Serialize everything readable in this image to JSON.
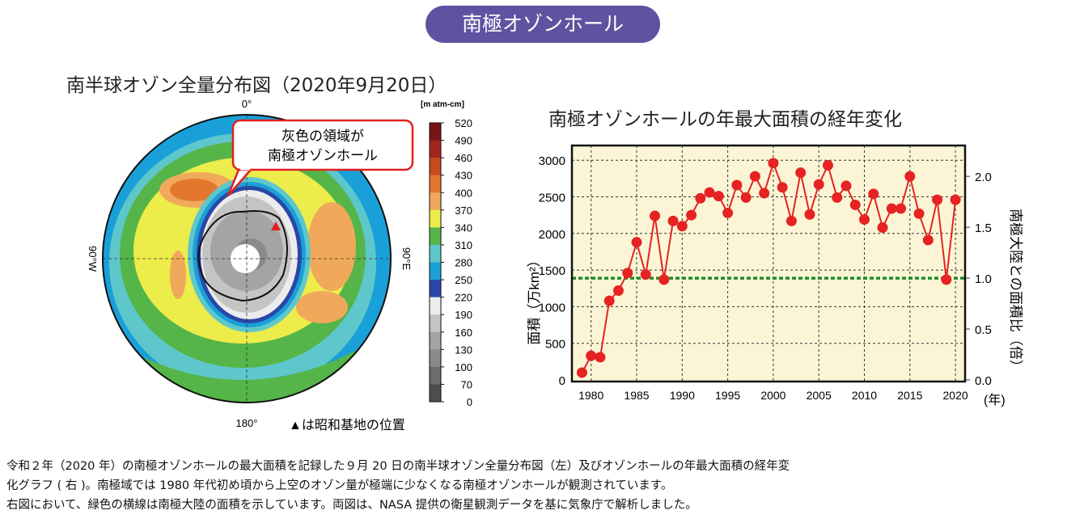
{
  "header": {
    "title": "南極オゾンホール"
  },
  "map": {
    "title": "南半球オゾン全量分布図（2020年9月20日）",
    "labels": {
      "top": "0°",
      "bottom": "180°",
      "left": "90°W",
      "right": "90°E"
    },
    "unit": "[m atm-cm]",
    "colorbar_ticks": [
      "520",
      "490",
      "460",
      "430",
      "400",
      "370",
      "340",
      "310",
      "280",
      "250",
      "220",
      "190",
      "160",
      "130",
      "100",
      "70",
      "0"
    ],
    "colorbar_colors": [
      "#7a1416",
      "#a3251f",
      "#c84a1e",
      "#e3782d",
      "#f0a95a",
      "#ecec4a",
      "#55b548",
      "#5ec7cc",
      "#1aa0d8",
      "#2a47a8",
      "#ececec",
      "#c4c4c4",
      "#a4a4a4",
      "#8a8a8a",
      "#6c6c6c",
      "#4e4e4e",
      "#2b2b2b"
    ],
    "callout": {
      "line1": "灰色の領域が",
      "line2": "南極オゾンホール"
    },
    "marker_note": "▲は昭和基地の位置",
    "marker_color": "#e02020"
  },
  "chart_data": {
    "type": "line",
    "title": "南極オゾンホールの年最大面積の経年変化",
    "ylabel": "面積（万km²）",
    "y2label": "南極大陸との面積比（倍）",
    "xlabel": "(年)",
    "x": [
      1979,
      1980,
      1981,
      1982,
      1983,
      1984,
      1985,
      1986,
      1987,
      1988,
      1989,
      1990,
      1991,
      1992,
      1993,
      1994,
      1995,
      1996,
      1997,
      1998,
      1999,
      2000,
      2001,
      2002,
      2003,
      2004,
      2005,
      2006,
      2007,
      2008,
      2009,
      2010,
      2011,
      2012,
      2013,
      2014,
      2015,
      2016,
      2017,
      2018,
      2019,
      2020
    ],
    "values": [
      100,
      330,
      310,
      1080,
      1220,
      1460,
      1880,
      1440,
      2240,
      1370,
      2170,
      2100,
      2250,
      2480,
      2560,
      2510,
      2280,
      2660,
      2490,
      2780,
      2550,
      2960,
      2630,
      2170,
      2830,
      2260,
      2670,
      2930,
      2490,
      2650,
      2390,
      2190,
      2540,
      2080,
      2340,
      2340,
      2780,
      2270,
      1910,
      2460,
      1370,
      2460
    ],
    "xlim": [
      1978.5,
      2021.5
    ],
    "ylim": [
      0,
      3200
    ],
    "xticks": [
      "1980",
      "1985",
      "1990",
      "1995",
      "2000",
      "2005",
      "2010",
      "2015",
      "2020"
    ],
    "yticks": [
      "0",
      "500",
      "1000",
      "1500",
      "2000",
      "2500",
      "3000"
    ],
    "y2ticks": [
      "0.0",
      "0.5",
      "1.0",
      "1.5",
      "2.0"
    ],
    "reference_line": {
      "value": 1390,
      "ratio": 1.0,
      "color": "#1f8a2a",
      "style": "dotted"
    },
    "series_color": "#e62222",
    "background": "#fbf5d6",
    "grid": true
  },
  "caption": {
    "line1": "令和２年（2020 年）の南極オゾンホールの最大面積を記録した９月 20 日の南半球オゾン全量分布図（左）及びオゾンホールの年最大面積の経年変",
    "line2": "化グラフ ( 右 )。南極域では 1980 年代初め頃から上空のオゾン量が極端に少なくなる南極オゾンホールが観測されています。",
    "line3": "右図において、緑色の横線は南極大陸の面積を示しています。両図は、NASA 提供の衛星観測データを基に気象庁で解析しました。"
  }
}
